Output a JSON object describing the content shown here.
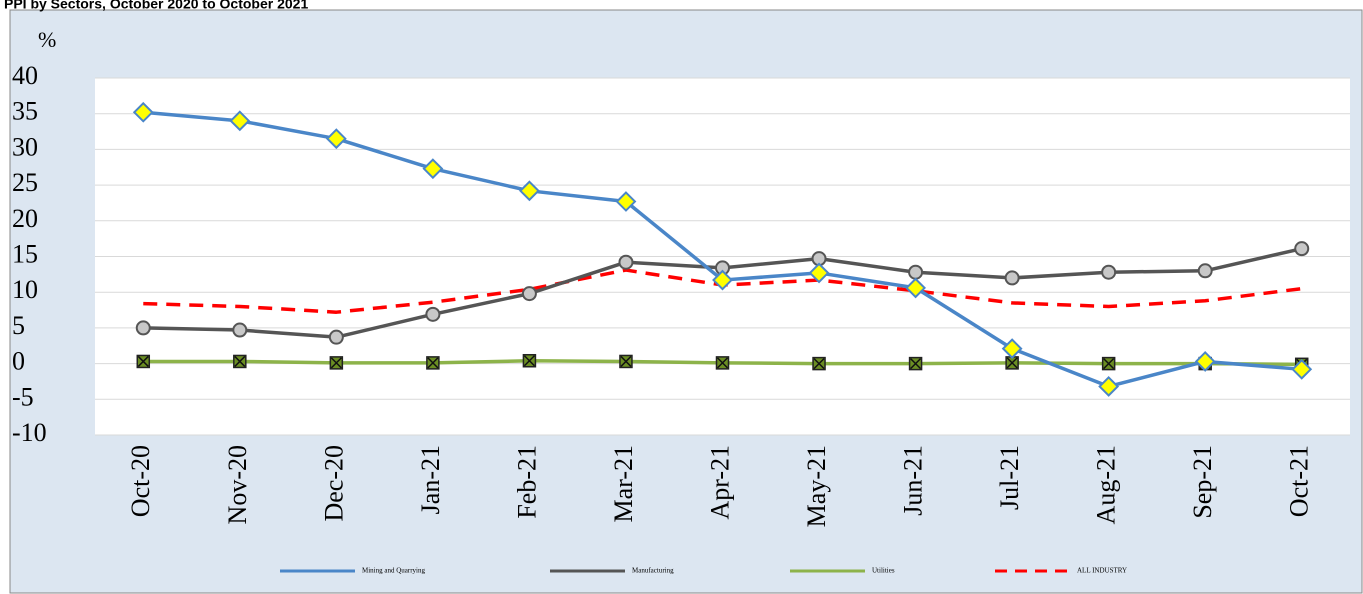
{
  "chart_data": {
    "type": "line",
    "title": "PPI by Sectors, October 2020 to October 2021",
    "y_label": "%",
    "categories": [
      "Oct-20",
      "Nov-20",
      "Dec-20",
      "Jan-21",
      "Feb-21",
      "Mar-21",
      "Apr-21",
      "May-21",
      "Jun-21",
      "Jul-21",
      "Aug-21",
      "Sep-21",
      "Oct-21"
    ],
    "ylim": [
      -10,
      40
    ],
    "yticks": [
      -10,
      -5,
      0,
      5,
      10,
      15,
      20,
      25,
      30,
      35,
      40
    ],
    "legend": "bottom",
    "series": [
      {
        "name": "Mining and Quarrying",
        "color": "#4a86c8",
        "marker": "diamond",
        "marker_color": "#ffff00",
        "values": [
          35.2,
          34.0,
          31.5,
          27.3,
          24.2,
          22.7,
          11.7,
          12.7,
          10.6,
          2.1,
          -3.2,
          0.3,
          -0.8
        ]
      },
      {
        "name": "Manufacturing",
        "color": "#555555",
        "marker": "circle",
        "marker_color": "#c8c8c8",
        "values": [
          5.0,
          4.7,
          3.7,
          6.9,
          9.8,
          14.2,
          13.4,
          14.7,
          12.8,
          12.0,
          12.8,
          13.0,
          16.1
        ]
      },
      {
        "name": "Utilities",
        "color": "#8db34a",
        "marker": "square-x",
        "marker_color": "#6b8e23",
        "values": [
          0.3,
          0.3,
          0.1,
          0.1,
          0.4,
          0.3,
          0.1,
          0.0,
          0.0,
          0.1,
          0.0,
          0.0,
          -0.1
        ]
      },
      {
        "name": "ALL INDUSTRY",
        "color": "#ff0000",
        "dash": true,
        "marker": "none",
        "values": [
          8.4,
          8.0,
          7.2,
          8.6,
          10.4,
          13.1,
          11.0,
          11.7,
          10.2,
          8.5,
          8.0,
          8.8,
          10.5
        ]
      }
    ]
  }
}
